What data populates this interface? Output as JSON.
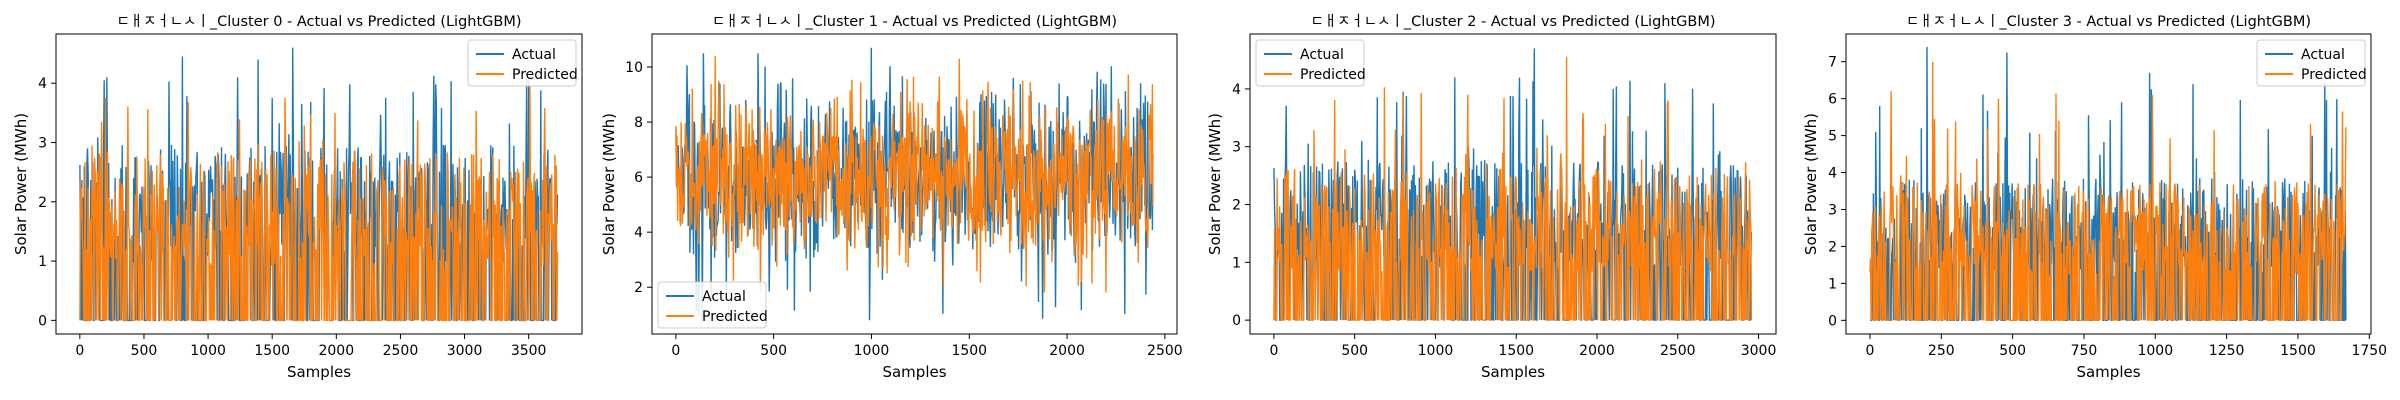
{
  "colors": {
    "actual": "#1f77b4",
    "predicted": "#ff7f0e",
    "frame": "#000000",
    "background": "#ffffff"
  },
  "chart_data": [
    {
      "type": "line",
      "title": "ㄷㅐㅈㅓㄴㅅㅣ_Cluster 0 - Actual vs Predicted (LightGBM)",
      "xlabel": "Samples",
      "ylabel": "Solar Power (MWh)",
      "xlim": [
        -186,
        3916
      ],
      "ylim": [
        -0.23,
        4.83
      ],
      "xticks": [
        0,
        500,
        1000,
        1500,
        2000,
        2500,
        3000,
        3500
      ],
      "yticks": [
        0,
        1,
        2,
        3,
        4
      ],
      "grid": false,
      "legend": "top-right",
      "series": [
        {
          "name": "Actual",
          "n": 3730,
          "min": 0,
          "max": 4.6,
          "typical_max": 2.7,
          "peaks": [
            [
              190,
              4.05
            ],
            [
              210,
              4.1
            ],
            [
              800,
              4.45
            ],
            [
              1230,
              4.1
            ],
            [
              1390,
              4.4
            ],
            [
              1500,
              3.75
            ],
            [
              1660,
              4.6
            ],
            [
              1730,
              3.65
            ],
            [
              2600,
              3.85
            ],
            [
              3500,
              4.05
            ]
          ]
        },
        {
          "name": "Predicted",
          "n": 3730,
          "min": 0,
          "max": 4.0,
          "typical_max": 2.6,
          "peaks": [
            [
              200,
              3.75
            ],
            [
              1600,
              3.75
            ],
            [
              1990,
              3.5
            ],
            [
              3510,
              3.95
            ]
          ]
        }
      ]
    },
    {
      "type": "line",
      "title": "ㄷㅐㅈㅓㄴㅅㅣ_Cluster 1 - Actual vs Predicted (LightGBM)",
      "xlabel": "Samples",
      "ylabel": "Solar Power (MWh)",
      "xlim": [
        -122,
        2562
      ],
      "ylim": [
        0.3,
        11.2
      ],
      "xticks": [
        0,
        500,
        1000,
        1500,
        2000,
        2500
      ],
      "yticks": [
        2,
        4,
        6,
        8,
        10
      ],
      "grid": false,
      "legend": "bottom-left",
      "series": [
        {
          "name": "Actual",
          "n": 2440,
          "min": 0.8,
          "max": 10.8,
          "typical_low": 3.5,
          "typical_high": 8.5,
          "peaks": [
            [
              140,
              10.5
            ],
            [
              420,
              10.5
            ],
            [
              1000,
              10.7
            ],
            [
              990,
              0.8
            ]
          ]
        },
        {
          "name": "Predicted",
          "n": 2440,
          "min": 1.6,
          "max": 10.4,
          "typical_low": 3.8,
          "typical_high": 8.2,
          "peaks": [
            [
              200,
              10.4
            ],
            [
              1450,
              10.3
            ]
          ]
        }
      ]
    },
    {
      "type": "line",
      "title": "ㄷㅐㅈㅓㄴㅅㅣ_Cluster 2 - Actual vs Predicted (LightGBM)",
      "xlabel": "Samples",
      "ylabel": "Solar Power (MWh)",
      "xlim": [
        -148,
        3108
      ],
      "ylim": [
        -0.24,
        4.95
      ],
      "xticks": [
        0,
        500,
        1000,
        1500,
        2000,
        2500,
        3000
      ],
      "yticks": [
        0,
        1,
        2,
        3,
        4
      ],
      "grid": false,
      "legend": "top-left",
      "series": [
        {
          "name": "Actual",
          "n": 2960,
          "min": 0,
          "max": 4.7,
          "typical_max": 2.5,
          "peaks": [
            [
              800,
              3.95
            ],
            [
              1120,
              4.2
            ],
            [
              1610,
              4.7
            ],
            [
              2100,
              4.0
            ],
            [
              2420,
              4.1
            ]
          ]
        },
        {
          "name": "Predicted",
          "n": 2960,
          "min": 0,
          "max": 4.55,
          "typical_max": 2.4,
          "peaks": [
            [
              1810,
              4.55
            ],
            [
              1200,
              3.9
            ],
            [
              2440,
              3.8
            ]
          ]
        }
      ]
    },
    {
      "type": "line",
      "title": "ㄷㅐㅈㅓㄴㅅㅣ_Cluster 3 - Actual vs Predicted (LightGBM)",
      "xlabel": "Samples",
      "ylabel": "Solar Power (MWh)",
      "xlim": [
        -84,
        1756
      ],
      "ylim": [
        -0.37,
        7.75
      ],
      "xticks": [
        0,
        250,
        500,
        750,
        1000,
        1250,
        1500,
        1750
      ],
      "yticks": [
        0,
        1,
        2,
        3,
        4,
        5,
        6,
        7
      ],
      "grid": false,
      "legend": "top-right",
      "series": [
        {
          "name": "Actual",
          "n": 1670,
          "min": 0,
          "max": 7.4,
          "typical_max": 3.5,
          "peaks": [
            [
              20,
              5.1
            ],
            [
              180,
              5.2
            ],
            [
              200,
              7.4
            ],
            [
              480,
              7.25
            ],
            [
              980,
              6.7
            ],
            [
              1550,
              5.0
            ]
          ]
        },
        {
          "name": "Predicted",
          "n": 1670,
          "min": 0,
          "max": 7.0,
          "typical_max": 3.4,
          "peaks": [
            [
              220,
              7.0
            ],
            [
              450,
              6.0
            ],
            [
              990,
              6.1
            ]
          ]
        }
      ]
    }
  ]
}
